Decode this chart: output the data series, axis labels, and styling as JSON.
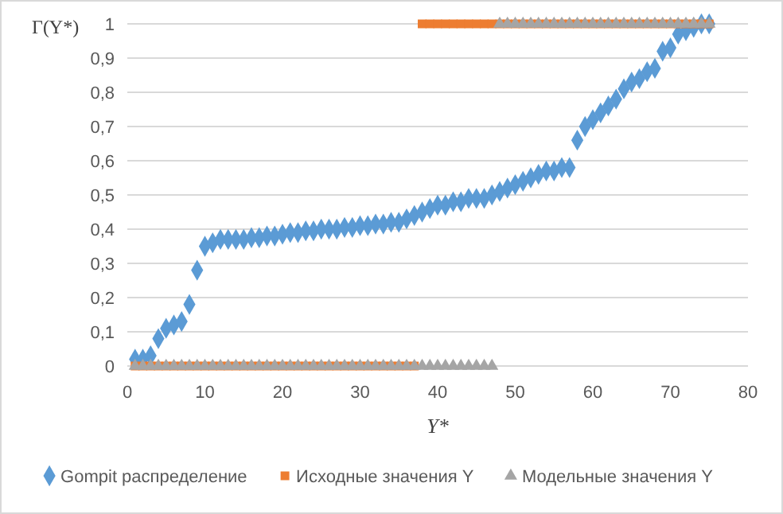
{
  "chart_data": {
    "type": "scatter",
    "xlabel": "Y*",
    "ylabel": "Γ(Y*)",
    "xlim": [
      0,
      80
    ],
    "xticks": [
      0,
      10,
      20,
      30,
      40,
      50,
      60,
      70,
      80
    ],
    "ylim": [
      0,
      1
    ],
    "yticks": [
      0,
      {
        "value": 0.1,
        "label": "0,1"
      },
      {
        "value": 0.2,
        "label": "0,2"
      },
      {
        "value": 0.3,
        "label": "0,3"
      },
      {
        "value": 0.4,
        "label": "0,4"
      },
      {
        "value": 0.5,
        "label": "0,5"
      },
      {
        "value": 0.6,
        "label": "0,6"
      },
      {
        "value": 0.7,
        "label": "0,7"
      },
      {
        "value": 0.8,
        "label": "0,8"
      },
      {
        "value": 0.9,
        "label": "0,9"
      },
      1
    ],
    "grid": "y",
    "legend": "bottom",
    "x": [
      1,
      2,
      3,
      4,
      5,
      6,
      7,
      8,
      9,
      10,
      11,
      12,
      13,
      14,
      15,
      16,
      17,
      18,
      19,
      20,
      21,
      22,
      23,
      24,
      25,
      26,
      27,
      28,
      29,
      30,
      31,
      32,
      33,
      34,
      35,
      36,
      37,
      38,
      39,
      40,
      41,
      42,
      43,
      44,
      45,
      46,
      47,
      48,
      49,
      50,
      51,
      52,
      53,
      54,
      55,
      56,
      57,
      58,
      59,
      60,
      61,
      62,
      63,
      64,
      65,
      66,
      67,
      68,
      69,
      70,
      71,
      72,
      73,
      74,
      75
    ],
    "series": [
      {
        "name": "Gompit распределение",
        "color": "#5b9bd5",
        "marker": "diamond",
        "values": [
          0.02,
          0.02,
          0.03,
          0.08,
          0.11,
          0.12,
          0.13,
          0.18,
          0.28,
          0.35,
          0.36,
          0.37,
          0.37,
          0.37,
          0.37,
          0.375,
          0.375,
          0.38,
          0.38,
          0.385,
          0.39,
          0.39,
          0.395,
          0.395,
          0.4,
          0.4,
          0.4,
          0.405,
          0.405,
          0.41,
          0.41,
          0.415,
          0.415,
          0.42,
          0.42,
          0.43,
          0.44,
          0.45,
          0.46,
          0.47,
          0.47,
          0.48,
          0.48,
          0.49,
          0.49,
          0.49,
          0.5,
          0.51,
          0.52,
          0.53,
          0.54,
          0.55,
          0.56,
          0.57,
          0.57,
          0.58,
          0.58,
          0.66,
          0.7,
          0.72,
          0.74,
          0.76,
          0.78,
          0.81,
          0.83,
          0.84,
          0.86,
          0.87,
          0.92,
          0.93,
          0.97,
          0.98,
          0.99,
          1,
          1
        ]
      },
      {
        "name": "Исходные значения Y",
        "color": "#ed7d31",
        "marker": "square",
        "values": [
          0,
          0,
          0,
          0,
          0,
          0,
          0,
          0,
          0,
          0,
          0,
          0,
          0,
          0,
          0,
          0,
          0,
          0,
          0,
          0,
          0,
          0,
          0,
          0,
          0,
          0,
          0,
          0,
          0,
          0,
          0,
          0,
          0,
          0,
          0,
          0,
          0,
          1,
          1,
          1,
          1,
          1,
          1,
          1,
          1,
          1,
          1,
          1,
          1,
          1,
          1,
          1,
          1,
          1,
          1,
          1,
          1,
          1,
          1,
          1,
          1,
          1,
          1,
          1,
          1,
          1,
          1,
          1,
          1,
          1,
          1,
          1,
          1,
          1,
          1
        ]
      },
      {
        "name": "Модельные значения Y",
        "color": "#a5a5a5",
        "marker": "triangle",
        "values": [
          0,
          0,
          0,
          0,
          0,
          0,
          0,
          0,
          0,
          0,
          0,
          0,
          0,
          0,
          0,
          0,
          0,
          0,
          0,
          0,
          0,
          0,
          0,
          0,
          0,
          0,
          0,
          0,
          0,
          0,
          0,
          0,
          0,
          0,
          0,
          0,
          0,
          0,
          0,
          0,
          0,
          0,
          0,
          0,
          0,
          0,
          0,
          1,
          1,
          1,
          1,
          1,
          1,
          1,
          1,
          1,
          1,
          1,
          1,
          1,
          1,
          1,
          1,
          1,
          1,
          1,
          1,
          1,
          1,
          1,
          1,
          1,
          1,
          1,
          1
        ]
      }
    ]
  }
}
